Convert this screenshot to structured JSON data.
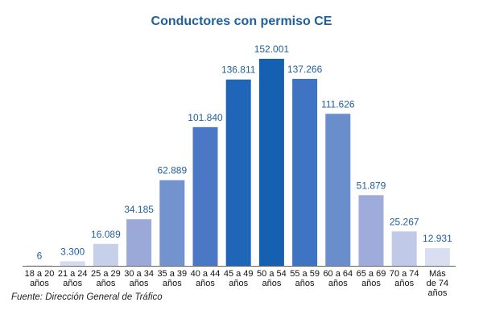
{
  "chart_data": {
    "type": "bar",
    "title": "Conductores con permiso CE",
    "source": "Fuente: Dirección General de Tráfico",
    "categories": [
      [
        "18 a 20",
        "años"
      ],
      [
        "21 a 24",
        "años"
      ],
      [
        "25 a 29",
        "años"
      ],
      [
        "30 a 34",
        "años"
      ],
      [
        "35 a 39",
        "años"
      ],
      [
        "40 a 44",
        "años"
      ],
      [
        "45 a 49",
        "años"
      ],
      [
        "50 a 54",
        "años"
      ],
      [
        "55 a 59",
        "años"
      ],
      [
        "60 a 64",
        "años"
      ],
      [
        "65 a 69",
        "años"
      ],
      [
        "70 a 74",
        "años"
      ],
      [
        "Más",
        "de 74",
        "años"
      ]
    ],
    "values": [
      6,
      3300,
      16089,
      34185,
      62889,
      101840,
      136811,
      152001,
      137266,
      111626,
      51879,
      25267,
      12931
    ],
    "value_labels": [
      "6",
      "3.300",
      "16.089",
      "34.185",
      "62.889",
      "101.840",
      "136.811",
      "152.001",
      "137.266",
      "111.626",
      "51.879",
      "25.267",
      "12.931"
    ],
    "ylim": [
      0,
      152001
    ],
    "grid": false,
    "colors": [
      "#d5dcef",
      "#d5dcef",
      "#c6d0ea",
      "#9aa9d8",
      "#7393cf",
      "#4a78c4",
      "#1f66b9",
      "#1660b2",
      "#3f74c2",
      "#6a8dcb",
      "#9fabda",
      "#c0c9e8",
      "#d9dff1"
    ],
    "value_color": "#1f5f9e",
    "axis_color": "#666666"
  }
}
